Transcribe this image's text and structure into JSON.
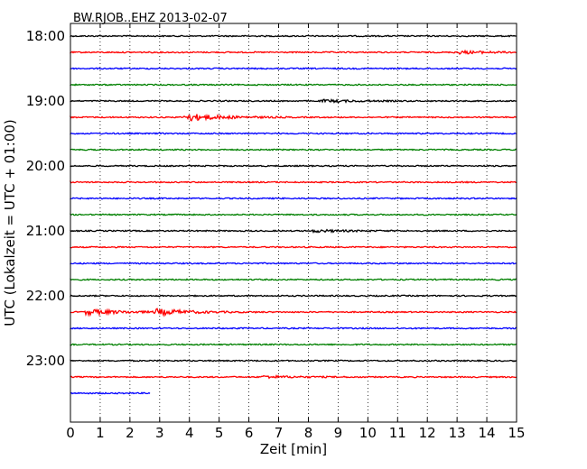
{
  "chart_data": {
    "type": "line",
    "title": "BW.RJOB..EHZ 2013-02-07",
    "xlabel": "Zeit  [min]",
    "ylabel": "UTC (Lokalzeit = UTC + 01:00)",
    "xlim": [
      0,
      15
    ],
    "x_ticks": [
      "0",
      "1",
      "2",
      "3",
      "4",
      "5",
      "6",
      "7",
      "8",
      "9",
      "10",
      "11",
      "12",
      "13",
      "14",
      "15"
    ],
    "y_ticks": [
      "18:00",
      "19:00",
      "20:00",
      "21:00",
      "22:00",
      "23:00"
    ],
    "grid": true,
    "colors": [
      "#000000",
      "#ff0000",
      "#0000ff",
      "#008000"
    ],
    "traces": [
      {
        "start": "18:00",
        "color": "#000000",
        "end_min": 15
      },
      {
        "start": "18:15",
        "color": "#ff0000",
        "end_min": 15,
        "events": [
          {
            "min": 13.0,
            "amp": 1.5
          }
        ]
      },
      {
        "start": "18:30",
        "color": "#0000ff",
        "end_min": 15
      },
      {
        "start": "18:45",
        "color": "#008000",
        "end_min": 15
      },
      {
        "start": "19:00",
        "color": "#000000",
        "end_min": 15,
        "events": [
          {
            "min": 8.5,
            "amp": 1.2
          }
        ]
      },
      {
        "start": "19:15",
        "color": "#ff0000",
        "end_min": 15,
        "events": [
          {
            "min": 3.9,
            "amp": 4
          }
        ]
      },
      {
        "start": "19:30",
        "color": "#0000ff",
        "end_min": 15
      },
      {
        "start": "19:45",
        "color": "#008000",
        "end_min": 15
      },
      {
        "start": "20:00",
        "color": "#000000",
        "end_min": 15
      },
      {
        "start": "20:15",
        "color": "#ff0000",
        "end_min": 15
      },
      {
        "start": "20:30",
        "color": "#0000ff",
        "end_min": 15
      },
      {
        "start": "20:45",
        "color": "#008000",
        "end_min": 15
      },
      {
        "start": "21:00",
        "color": "#000000",
        "end_min": 15,
        "events": [
          {
            "min": 8.2,
            "amp": 1.2
          }
        ]
      },
      {
        "start": "21:15",
        "color": "#ff0000",
        "end_min": 15
      },
      {
        "start": "21:30",
        "color": "#0000ff",
        "end_min": 15
      },
      {
        "start": "21:45",
        "color": "#008000",
        "end_min": 15
      },
      {
        "start": "22:00",
        "color": "#000000",
        "end_min": 15
      },
      {
        "start": "22:15",
        "color": "#ff0000",
        "end_min": 15,
        "events": [
          {
            "min": 0.55,
            "amp": 3
          },
          {
            "min": 2.9,
            "amp": 3
          }
        ]
      },
      {
        "start": "22:30",
        "color": "#0000ff",
        "end_min": 15
      },
      {
        "start": "22:45",
        "color": "#008000",
        "end_min": 15
      },
      {
        "start": "23:00",
        "color": "#000000",
        "end_min": 15
      },
      {
        "start": "23:15",
        "color": "#ff0000",
        "end_min": 15,
        "events": [
          {
            "min": 6.5,
            "amp": 1.2
          }
        ]
      },
      {
        "start": "23:30",
        "color": "#0000ff",
        "end_min": 2.7
      }
    ]
  }
}
